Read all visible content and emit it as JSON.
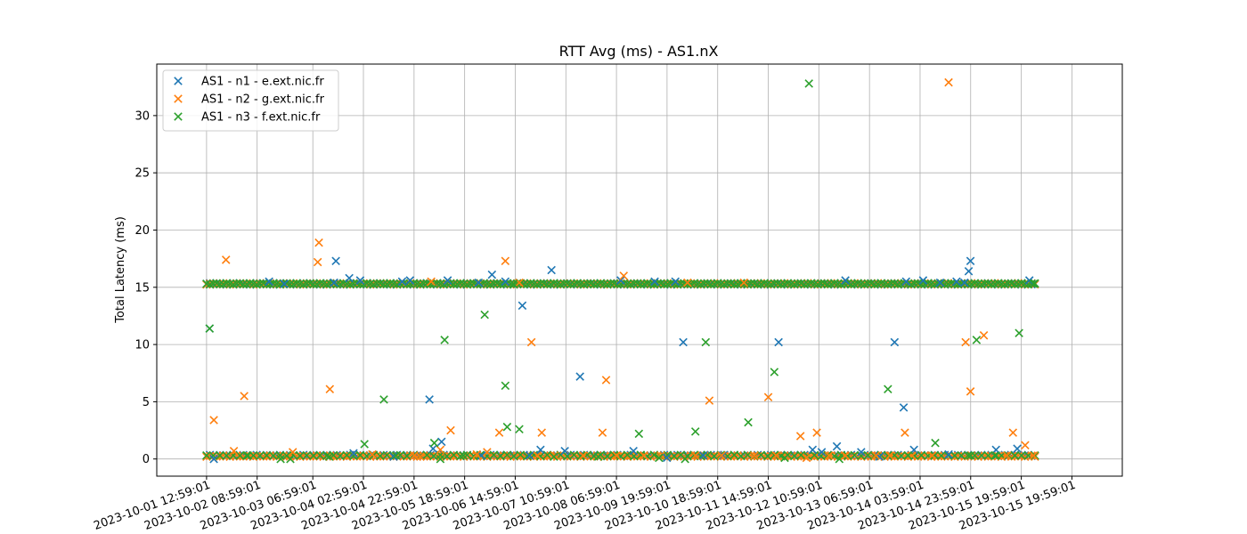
{
  "chart_data": {
    "type": "scatter",
    "title": "RTT Avg (ms) - AS1.nX",
    "xlabel": "",
    "ylabel": "Total Latency (ms)",
    "ylim": [
      -1.5,
      34.5
    ],
    "yticks": [
      0,
      5,
      10,
      15,
      20,
      25,
      30
    ],
    "x_range_days": [
      -0.82,
      15.08
    ],
    "xticks": [
      {
        "day": 0.0,
        "label": "2023-10-01 12:59:01"
      },
      {
        "day": 0.833,
        "label": "2023-10-02 08:59:01"
      },
      {
        "day": 1.75,
        "label": "2023-10-03 06:59:01"
      },
      {
        "day": 2.583,
        "label": "2023-10-04 02:59:01"
      },
      {
        "day": 3.417,
        "label": "2023-10-04 22:59:01"
      },
      {
        "day": 4.25,
        "label": "2023-10-05 18:59:01"
      },
      {
        "day": 5.083,
        "label": "2023-10-06 14:59:01"
      },
      {
        "day": 5.917,
        "label": "2023-10-07 10:59:01"
      },
      {
        "day": 6.75,
        "label": "2023-10-08 06:59:01"
      },
      {
        "day": 7.583,
        "label": "2023-10-09 19:59:01"
      },
      {
        "day": 8.417,
        "label": "2023-10-10 18:59:01"
      },
      {
        "day": 9.25,
        "label": "2023-10-11 14:59:01"
      },
      {
        "day": 10.083,
        "label": "2023-10-12 10:59:01"
      },
      {
        "day": 10.917,
        "label": "2023-10-13 06:59:01"
      },
      {
        "day": 11.75,
        "label": "2023-10-14 03:59:01"
      },
      {
        "day": 12.583,
        "label": "2023-10-14 23:59:01"
      },
      {
        "day": 13.417,
        "label": "2023-10-15 19:59:01"
      },
      {
        "day": 14.25,
        "label": "2023-10-15 19:59:01"
      }
    ],
    "grid": true,
    "legend_position": "top-left",
    "marker": "x",
    "series": [
      {
        "name": "AS1 - n1 - e.ext.nic.fr",
        "color": "#1f77b4",
        "points": [
          [
            0.05,
            11.4
          ],
          [
            0.12,
            0.0
          ],
          [
            1.03,
            15.5
          ],
          [
            1.28,
            15.3
          ],
          [
            2.1,
            15.4
          ],
          [
            2.13,
            17.3
          ],
          [
            2.35,
            15.8
          ],
          [
            2.42,
            0.5
          ],
          [
            2.53,
            15.6
          ],
          [
            3.08,
            0.2
          ],
          [
            3.22,
            15.5
          ],
          [
            3.35,
            15.6
          ],
          [
            3.67,
            5.2
          ],
          [
            3.73,
            0.9
          ],
          [
            3.87,
            1.5
          ],
          [
            3.97,
            15.6
          ],
          [
            4.48,
            15.4
          ],
          [
            4.53,
            0.3
          ],
          [
            4.7,
            16.1
          ],
          [
            4.92,
            15.5
          ],
          [
            5.2,
            13.4
          ],
          [
            5.32,
            0.3
          ],
          [
            5.5,
            0.8
          ],
          [
            5.68,
            16.5
          ],
          [
            5.9,
            0.7
          ],
          [
            6.15,
            7.2
          ],
          [
            6.82,
            15.6
          ],
          [
            7.03,
            0.7
          ],
          [
            7.38,
            15.5
          ],
          [
            7.58,
            0.1
          ],
          [
            7.72,
            15.5
          ],
          [
            7.85,
            10.2
          ],
          [
            8.18,
            0.3
          ],
          [
            8.5,
            0.3
          ],
          [
            9.42,
            10.2
          ],
          [
            9.98,
            0.8
          ],
          [
            10.13,
            0.6
          ],
          [
            10.38,
            1.1
          ],
          [
            10.52,
            15.6
          ],
          [
            10.78,
            0.6
          ],
          [
            11.08,
            0.2
          ],
          [
            11.33,
            10.2
          ],
          [
            11.48,
            4.5
          ],
          [
            11.52,
            15.5
          ],
          [
            11.65,
            0.8
          ],
          [
            11.8,
            15.6
          ],
          [
            12.08,
            15.4
          ],
          [
            12.22,
            0.4
          ],
          [
            12.35,
            15.5
          ],
          [
            12.48,
            15.4
          ],
          [
            12.55,
            16.4
          ],
          [
            12.58,
            17.3
          ],
          [
            13.0,
            0.8
          ],
          [
            13.35,
            0.9
          ],
          [
            13.55,
            15.6
          ]
        ]
      },
      {
        "name": "AS1 - n2 - g.ext.nic.fr",
        "color": "#ff7f0e",
        "points": [
          [
            0.12,
            3.4
          ],
          [
            0.32,
            17.4
          ],
          [
            0.45,
            0.7
          ],
          [
            0.62,
            5.5
          ],
          [
            1.42,
            0.6
          ],
          [
            1.83,
            17.2
          ],
          [
            1.85,
            18.9
          ],
          [
            2.03,
            6.1
          ],
          [
            2.73,
            0.4
          ],
          [
            3.42,
            0.3
          ],
          [
            3.52,
            0.2
          ],
          [
            3.7,
            15.5
          ],
          [
            3.85,
            0.8
          ],
          [
            4.02,
            2.5
          ],
          [
            4.45,
            0.4
          ],
          [
            4.62,
            0.6
          ],
          [
            4.82,
            2.3
          ],
          [
            4.92,
            17.3
          ],
          [
            5.15,
            15.4
          ],
          [
            5.35,
            10.2
          ],
          [
            5.45,
            0.3
          ],
          [
            5.52,
            2.3
          ],
          [
            5.73,
            0.3
          ],
          [
            6.2,
            0.3
          ],
          [
            6.52,
            2.3
          ],
          [
            6.58,
            6.9
          ],
          [
            6.75,
            0.3
          ],
          [
            6.87,
            16.0
          ],
          [
            7.2,
            0.3
          ],
          [
            7.48,
            0.3
          ],
          [
            7.92,
            15.4
          ],
          [
            8.05,
            0.3
          ],
          [
            8.28,
            5.1
          ],
          [
            8.48,
            0.3
          ],
          [
            8.85,
            15.4
          ],
          [
            9.02,
            0.3
          ],
          [
            9.25,
            5.4
          ],
          [
            9.38,
            0.3
          ],
          [
            9.78,
            2.0
          ],
          [
            9.88,
            0.1
          ],
          [
            10.05,
            2.3
          ],
          [
            10.25,
            0.3
          ],
          [
            10.52,
            0.3
          ],
          [
            11.02,
            0.3
          ],
          [
            11.25,
            0.3
          ],
          [
            11.5,
            2.3
          ],
          [
            11.62,
            0.3
          ],
          [
            11.95,
            0.3
          ],
          [
            12.22,
            32.9
          ],
          [
            12.5,
            10.2
          ],
          [
            12.58,
            5.9
          ],
          [
            12.8,
            10.8
          ],
          [
            13.18,
            0.3
          ],
          [
            13.28,
            2.3
          ],
          [
            13.48,
            1.2
          ],
          [
            13.62,
            0.3
          ]
        ]
      },
      {
        "name": "AS1 - n3 - f.ext.nic.fr",
        "color": "#2ca02c",
        "points": [
          [
            0.05,
            11.4
          ],
          [
            0.68,
            0.3
          ],
          [
            1.22,
            0.0
          ],
          [
            1.38,
            0.0
          ],
          [
            2.02,
            0.2
          ],
          [
            2.6,
            1.3
          ],
          [
            2.92,
            5.2
          ],
          [
            3.12,
            0.3
          ],
          [
            3.75,
            1.4
          ],
          [
            3.85,
            0.0
          ],
          [
            3.92,
            10.4
          ],
          [
            4.23,
            0.3
          ],
          [
            4.58,
            12.6
          ],
          [
            4.92,
            6.4
          ],
          [
            4.95,
            2.8
          ],
          [
            5.05,
            15.3
          ],
          [
            5.15,
            2.6
          ],
          [
            5.72,
            0.2
          ],
          [
            6.45,
            0.2
          ],
          [
            7.12,
            2.2
          ],
          [
            7.45,
            0.1
          ],
          [
            7.88,
            0.0
          ],
          [
            8.05,
            2.4
          ],
          [
            8.22,
            10.2
          ],
          [
            8.92,
            3.2
          ],
          [
            9.35,
            7.6
          ],
          [
            9.52,
            0.1
          ],
          [
            9.92,
            32.8
          ],
          [
            10.42,
            0.0
          ],
          [
            11.22,
            6.1
          ],
          [
            11.55,
            0.3
          ],
          [
            12.0,
            1.4
          ],
          [
            12.58,
            0.3
          ],
          [
            12.68,
            10.4
          ],
          [
            13.0,
            0.3
          ],
          [
            13.38,
            11.0
          ],
          [
            13.62,
            15.3
          ]
        ]
      }
    ],
    "baseline_bands": [
      {
        "series": 0,
        "y": 15.3,
        "x": [
          0.0,
          13.65
        ],
        "step": 0.055
      },
      {
        "series": 1,
        "y": 15.3,
        "x": [
          0.0,
          13.65
        ],
        "step": 0.055
      },
      {
        "series": 2,
        "y": 15.3,
        "x": [
          0.0,
          13.65
        ],
        "step": 0.055
      },
      {
        "series": 0,
        "y": 0.3,
        "x": [
          0.0,
          13.65
        ],
        "step": 0.055
      },
      {
        "series": 1,
        "y": 0.25,
        "x": [
          0.0,
          13.65
        ],
        "step": 0.055
      },
      {
        "series": 2,
        "y": 0.3,
        "x": [
          0.0,
          13.65
        ],
        "step": 0.11
      }
    ]
  }
}
